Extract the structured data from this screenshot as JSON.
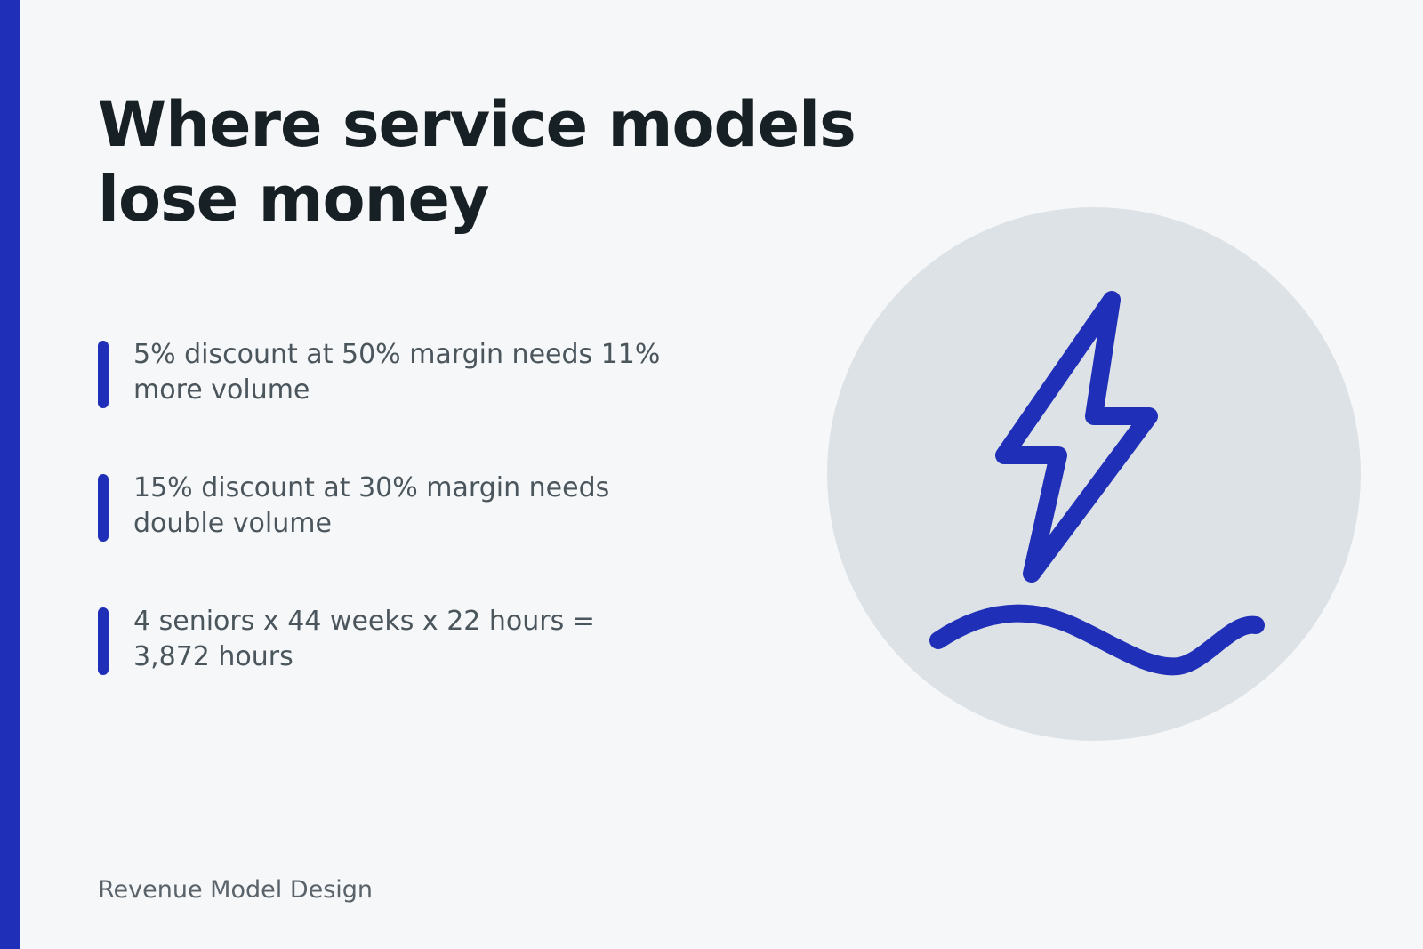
{
  "slide": {
    "title": "Where service models lose money",
    "bullets": [
      {
        "text": "5% discount at 50% margin needs 11% more volume"
      },
      {
        "text": "15% discount at 30% margin needs double volume"
      },
      {
        "text": "4 seniors x 44 weeks x 22 hours = 3,872 hours"
      }
    ],
    "illustration": {
      "icon": "lightning-bolt-icon",
      "accent_color": "#1f2fb8",
      "circle_color": "#dde2e6"
    },
    "footer": "Revenue Model Design"
  },
  "colors": {
    "accent": "#1f2fb8",
    "background": "#f5f7f9",
    "title": "#172024",
    "body_text": "#4b555c"
  }
}
